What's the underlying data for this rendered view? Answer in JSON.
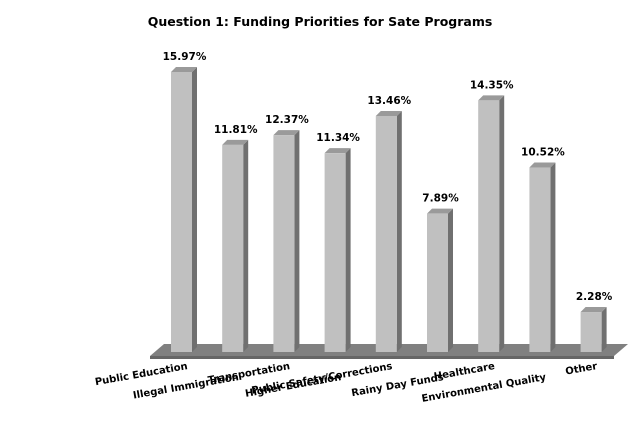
{
  "chart_data": {
    "type": "bar",
    "title": "Question 1: Funding Priorities for Sate Programs",
    "categories": [
      "Public Education",
      "Illegal Immigration",
      "Transportation",
      "Higher Education",
      "Public Safety/Corrections",
      "Rainy Day Funds",
      "Healthcare",
      "Environmental Quality",
      "Other"
    ],
    "values": [
      15.97,
      11.81,
      12.37,
      11.34,
      13.46,
      7.89,
      14.35,
      10.52,
      2.28
    ],
    "value_labels": [
      "15.97%",
      "11.81%",
      "12.37%",
      "11.34%",
      "13.46%",
      "7.89%",
      "14.35%",
      "10.52%",
      "2.28%"
    ],
    "xlabel": "",
    "ylabel": "",
    "ylim": [
      0,
      16
    ],
    "grid": false,
    "legend": "none",
    "colors": {
      "bar_front": "#c0c0c0",
      "bar_side": "#707070",
      "bar_top": "#9a9a9a",
      "floor": "#808080",
      "floor_edge": "#666666"
    }
  }
}
